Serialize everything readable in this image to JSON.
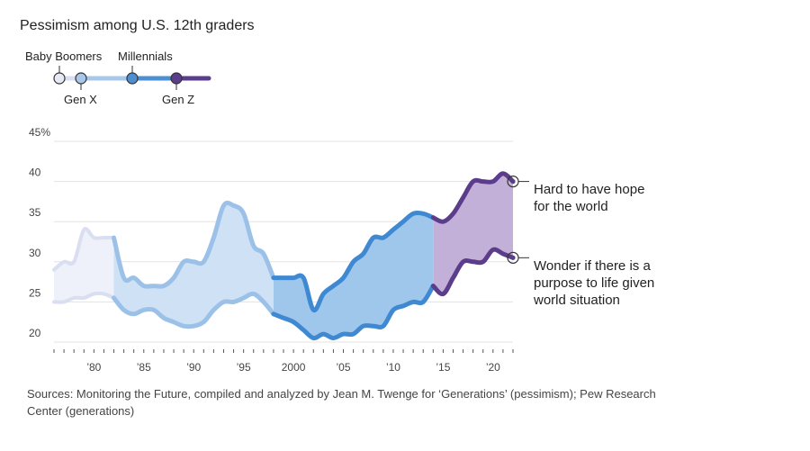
{
  "title": "Pessimism among U.S. 12th graders",
  "source_note": "Sources: Monitoring the Future, compiled and analyzed by Jean M. Twenge for  ‘Generations’ (pessimism); Pew Research Center (generations)",
  "legend": {
    "generations": [
      {
        "name": "Baby Boomers",
        "color": "#e6eaf5"
      },
      {
        "name": "Gen X",
        "color": "#a8c8ea"
      },
      {
        "name": "Millennials",
        "color": "#4d8fd0"
      },
      {
        "name": "Gen Z",
        "color": "#5b3d8c"
      }
    ]
  },
  "colors": {
    "boomer_fill": "#eef1fa",
    "genx_fill": "#cfe1f5",
    "millennial_fill": "#9fc7ec",
    "genz_fill": "#c3b0d8",
    "boomer_line": "#d9def0",
    "genx_line": "#9cc1e8",
    "millennial_line": "#3f88d2",
    "genz_line": "#5b3d8c"
  },
  "chart_data": {
    "type": "line",
    "title": "Pessimism among U.S. 12th graders",
    "ylim": [
      20,
      45
    ],
    "xlim": [
      1976,
      2022
    ],
    "y_ticks": [
      20,
      25,
      30,
      35,
      40,
      45
    ],
    "y_tick_labels": [
      "20",
      "25",
      "30",
      "35",
      "40",
      "45%"
    ],
    "x_ticks": [
      1980,
      1985,
      1990,
      1995,
      2000,
      2005,
      2010,
      2015,
      2020
    ],
    "x_tick_labels": [
      "’80",
      "’85",
      "’90",
      "’95",
      "2000",
      "’05",
      "’10",
      "’15",
      "’20"
    ],
    "generation_boundaries": [
      1982,
      1998,
      2014
    ],
    "x": [
      1976,
      1977,
      1978,
      1979,
      1980,
      1981,
      1982,
      1983,
      1984,
      1985,
      1986,
      1987,
      1988,
      1989,
      1990,
      1991,
      1992,
      1993,
      1994,
      1995,
      1996,
      1997,
      1998,
      1999,
      2000,
      2001,
      2002,
      2003,
      2004,
      2005,
      2006,
      2007,
      2008,
      2009,
      2010,
      2011,
      2012,
      2013,
      2014,
      2015,
      2016,
      2017,
      2018,
      2019,
      2020,
      2021,
      2022
    ],
    "series": [
      {
        "name": "Hard to have hope for the world",
        "values": [
          29,
          30,
          30,
          34,
          33,
          33,
          33,
          28,
          28,
          27,
          27,
          27,
          28,
          30,
          30,
          30,
          33,
          37,
          37,
          36,
          32,
          31,
          28,
          28,
          28,
          28,
          24,
          26,
          27,
          28,
          30,
          31,
          33,
          33,
          34,
          35,
          36,
          36,
          35.5,
          35,
          36,
          38,
          40,
          40,
          40,
          41,
          40
        ]
      },
      {
        "name": "Wonder if there is a purpose to life given world situation",
        "values": [
          25,
          25,
          25.5,
          25.5,
          26,
          26,
          25.5,
          24,
          23.5,
          24,
          24,
          23,
          22.5,
          22,
          22,
          22.5,
          24,
          25,
          25,
          25.5,
          26,
          25,
          23.5,
          23,
          22.5,
          21.5,
          20.5,
          21,
          20.5,
          21,
          21,
          22,
          22,
          22,
          24,
          24.5,
          25,
          25,
          27,
          26,
          28,
          30,
          30,
          30,
          31.5,
          31,
          30.5
        ]
      }
    ]
  },
  "annotations": {
    "hope": "Hard to have hope for the world",
    "hope_lines": [
      "Hard to have hope",
      "for the world"
    ],
    "purpose": "Wonder if there is a purpose to life given world situation",
    "purpose_lines": [
      "Wonder if there is a",
      "purpose to life given",
      "world situation"
    ]
  }
}
